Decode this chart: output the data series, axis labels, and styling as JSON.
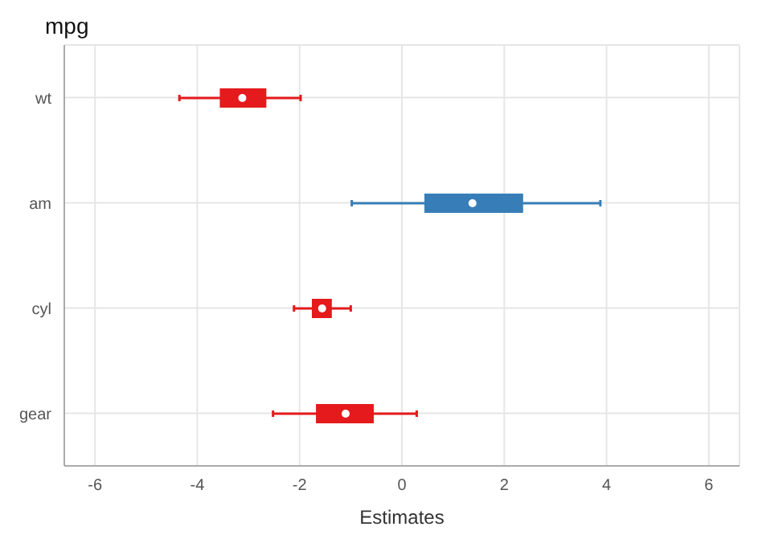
{
  "chart_data": {
    "type": "box",
    "orientation": "horizontal",
    "title": "mpg",
    "xlabel": "Estimates",
    "categories": [
      "wt",
      "am",
      "cyl",
      "gear"
    ],
    "boxes": [
      {
        "low": -4.35,
        "q1": -3.56,
        "median": -3.12,
        "q3": -2.65,
        "high": -1.98
      },
      {
        "low": -0.98,
        "q1": 0.44,
        "median": 1.38,
        "q3": 2.37,
        "high": 3.88
      },
      {
        "low": -2.11,
        "q1": -1.76,
        "median": -1.56,
        "q3": -1.37,
        "high": -1.0
      },
      {
        "low": -2.52,
        "q1": -1.68,
        "median": -1.1,
        "q3": -0.55,
        "high": 0.29
      }
    ],
    "colors": [
      "#e41a1c",
      "#377eb8",
      "#e41a1c",
      "#e41a1c"
    ],
    "xlim": [
      -6.6,
      6.6
    ],
    "xticks": [
      -6,
      -4,
      -2,
      0,
      2,
      4,
      6
    ],
    "grid": true
  }
}
